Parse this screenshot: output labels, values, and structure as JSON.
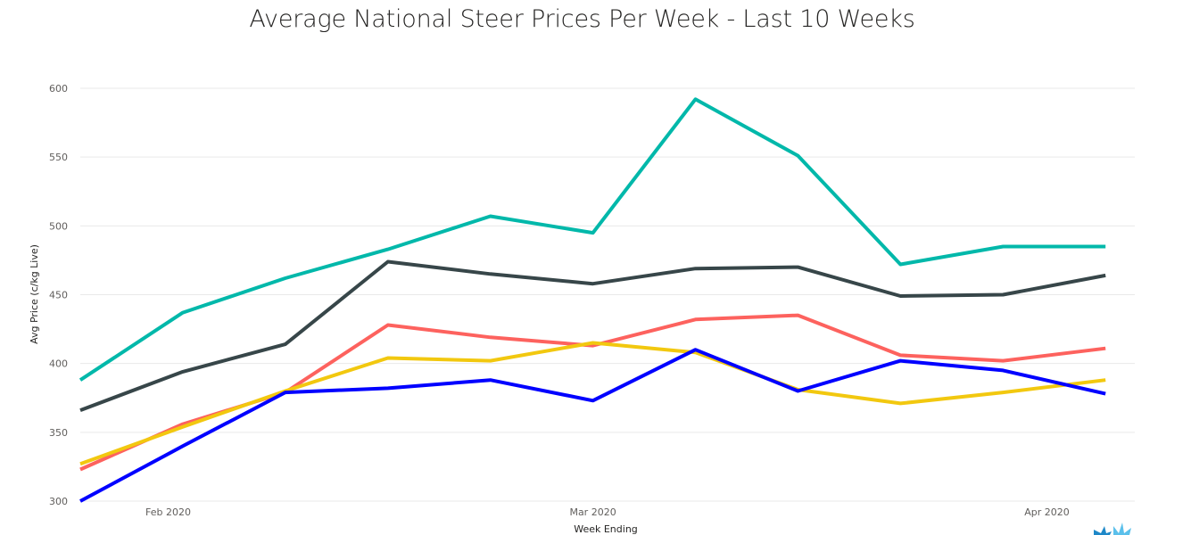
{
  "chart_data": {
    "type": "line",
    "title": "Average National Steer Prices Per Week - Last 10 Weeks",
    "xlabel": "Week Ending",
    "ylabel": "Avg Price (c/kg Live)",
    "ylim": [
      300,
      600
    ],
    "yticks": [
      300,
      350,
      400,
      450,
      500,
      550,
      600
    ],
    "xlim": [
      "2020-01-26",
      "2020-04-07"
    ],
    "xticks": [
      {
        "date": "2020-02-01",
        "label": "Feb 2020"
      },
      {
        "date": "2020-03-01",
        "label": "Mar 2020"
      },
      {
        "date": "2020-04-01",
        "label": "Apr 2020"
      }
    ],
    "grid": true,
    "legend": "none",
    "x": [
      "2020-01-26",
      "2020-02-02",
      "2020-02-09",
      "2020-02-16",
      "2020-02-23",
      "2020-03-01",
      "2020-03-08",
      "2020-03-15",
      "2020-03-22",
      "2020-03-29",
      "2020-04-05"
    ],
    "series": [
      {
        "color": "#01B8AA",
        "values": [
          388,
          437,
          462,
          483,
          507,
          495,
          592,
          551,
          472,
          485,
          485
        ]
      },
      {
        "color": "#374649",
        "values": [
          366,
          394,
          414,
          474,
          465,
          458,
          469,
          470,
          449,
          450,
          464
        ]
      },
      {
        "color": "#FD625E",
        "values": [
          323,
          356,
          379,
          428,
          419,
          413,
          432,
          435,
          406,
          402,
          411
        ]
      },
      {
        "color": "#F2C80F",
        "values": [
          327,
          354,
          380,
          404,
          402,
          415,
          408,
          381,
          371,
          379,
          388
        ]
      },
      {
        "color": "#0000FF",
        "values": [
          300,
          340,
          379,
          382,
          388,
          373,
          410,
          380,
          402,
          395,
          378
        ]
      }
    ]
  },
  "logo": {
    "name": "brand-logo-icon",
    "colors": [
      "#1E88C8",
      "#5BC0EB"
    ]
  }
}
